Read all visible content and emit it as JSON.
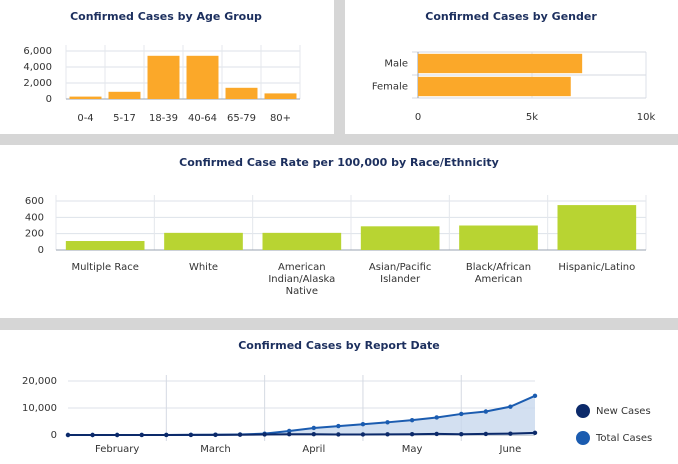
{
  "chart_data": [
    {
      "type": "bar",
      "title": "Confirmed Cases by Age Group",
      "categories": [
        "0-4",
        "5-17",
        "18-39",
        "40-64",
        "65-79",
        "80+"
      ],
      "values": [
        300,
        900,
        5400,
        5400,
        1400,
        700
      ],
      "color": "#fba829",
      "ylim": [
        0,
        6000
      ],
      "yticks": [
        0,
        {
          "value": 2000,
          "label": "2,000"
        },
        {
          "value": 4000,
          "label": "4,000"
        },
        {
          "value": 6000,
          "label": "6,000"
        }
      ],
      "grid": true
    },
    {
      "type": "hbar",
      "title": "Confirmed Cases by Gender",
      "categories": [
        "Male",
        "Female"
      ],
      "values": [
        7200,
        6700
      ],
      "color": "#fba829",
      "xlim": [
        0,
        10000
      ],
      "xticks": [
        0,
        {
          "value": 5000,
          "label": "5k"
        },
        {
          "value": 10000,
          "label": "10k"
        }
      ],
      "grid": true
    },
    {
      "type": "bar",
      "title": "Confirmed Case Rate per 100,000 by Race/Ethnicity",
      "categories": [
        "Multiple Race",
        "White",
        "American Indian/Alaska Native",
        "Asian/Pacific Islander",
        "Black/African American",
        "Hispanic/Latino"
      ],
      "values": [
        110,
        210,
        210,
        290,
        300,
        550
      ],
      "color": "#b8d432",
      "ylim": [
        0,
        600
      ],
      "yticks": [
        0,
        200,
        400,
        600
      ],
      "grid": true
    },
    {
      "type": "line",
      "title": "Confirmed Cases by Report Date",
      "categories": [
        null,
        null,
        "February",
        null,
        null,
        null,
        "March",
        null,
        null,
        null,
        "April",
        null,
        null,
        null,
        "May",
        null,
        null,
        null,
        "June",
        null
      ],
      "series": [
        {
          "name": "New Cases",
          "color": "#0c2a6a",
          "values": [
            0,
            0,
            0,
            10,
            10,
            30,
            50,
            100,
            200,
            300,
            300,
            200,
            200,
            250,
            300,
            400,
            300,
            400,
            500,
            800
          ]
        },
        {
          "name": "Total Cases",
          "color": "#1b5cb0",
          "area_color": "#c8d8ee",
          "values": [
            0,
            0,
            0,
            10,
            20,
            50,
            100,
            200,
            500,
            1500,
            2600,
            3300,
            4000,
            4700,
            5500,
            6500,
            7800,
            8700,
            10500,
            14500
          ]
        }
      ],
      "ylim": [
        0,
        20000
      ],
      "yticks": [
        0,
        {
          "value": 10000,
          "label": "10,000"
        },
        {
          "value": 20000,
          "label": "20,000"
        }
      ],
      "grid": true,
      "legend": "right"
    }
  ]
}
